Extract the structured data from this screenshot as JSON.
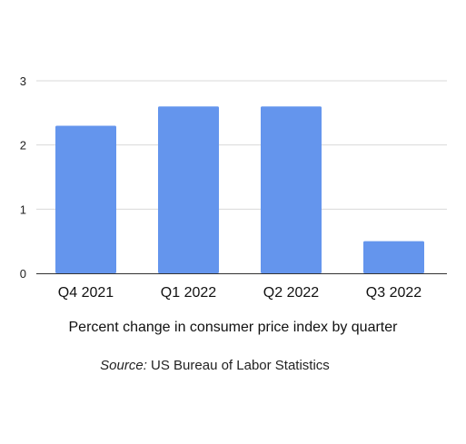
{
  "chart_data": {
    "type": "bar",
    "categories": [
      "Q4 2021",
      "Q1 2022",
      "Q2 2022",
      "Q3 2022"
    ],
    "values": [
      2.3,
      2.6,
      2.6,
      0.5
    ],
    "title": "",
    "xlabel": "Percent change in consumer price index by quarter",
    "ylabel": "",
    "ylim": [
      0,
      3
    ],
    "yticks": [
      "0",
      "1",
      "2",
      "3"
    ],
    "grid": true,
    "legend": "none",
    "bar_color": "#6495ed"
  },
  "source": {
    "prefix": "Source:",
    "text": " US Bureau of Labor Statistics"
  }
}
